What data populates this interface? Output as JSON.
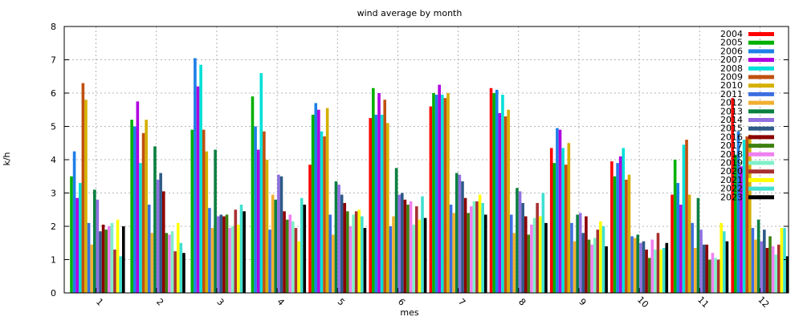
{
  "chart_data": {
    "type": "bar",
    "title": "wind average by month",
    "xlabel": "mes",
    "ylabel": "k/h",
    "ylim": [
      0,
      8
    ],
    "yticks": [
      0,
      1,
      2,
      3,
      4,
      5,
      6,
      7,
      8
    ],
    "grid": true,
    "legend_position": "top-right",
    "categories": [
      "1",
      "2",
      "3",
      "4",
      "5",
      "6",
      "7",
      "8",
      "9",
      "10",
      "11",
      "12"
    ],
    "series": [
      {
        "name": "2004",
        "color": "#ff0000",
        "values": [
          null,
          null,
          null,
          null,
          3.85,
          5.25,
          5.6,
          6.15,
          4.35,
          3.95,
          2.95,
          5.85
        ]
      },
      {
        "name": "2005",
        "color": "#00b000",
        "values": [
          3.5,
          5.2,
          4.9,
          5.9,
          5.35,
          6.15,
          6.0,
          6.0,
          3.9,
          3.5,
          4.0,
          4.15
        ]
      },
      {
        "name": "2006",
        "color": "#1e7fe8",
        "values": [
          4.25,
          5.0,
          7.05,
          5.0,
          5.7,
          5.35,
          5.95,
          6.1,
          4.95,
          3.9,
          3.3,
          4.85
        ]
      },
      {
        "name": "2007",
        "color": "#b000e0",
        "values": [
          2.85,
          5.75,
          6.2,
          4.3,
          5.5,
          6.0,
          6.25,
          5.4,
          4.9,
          4.1,
          2.65,
          3.8
        ]
      },
      {
        "name": "2008",
        "color": "#00e0d8",
        "values": [
          3.3,
          3.9,
          6.85,
          6.6,
          4.85,
          5.35,
          5.95,
          5.95,
          4.35,
          4.35,
          4.45,
          4.6
        ]
      },
      {
        "name": "2009",
        "color": "#c05010",
        "values": [
          6.3,
          4.8,
          4.9,
          4.85,
          4.7,
          5.8,
          5.85,
          5.3,
          3.85,
          3.4,
          4.6,
          4.7
        ]
      },
      {
        "name": "2010",
        "color": "#d4b000",
        "values": [
          5.8,
          5.2,
          4.25,
          4.0,
          5.55,
          5.1,
          6.0,
          5.5,
          4.5,
          3.55,
          2.95,
          4.75
        ]
      },
      {
        "name": "2011",
        "color": "#3d6fe0",
        "values": [
          2.1,
          2.65,
          2.55,
          1.9,
          2.35,
          2.0,
          2.65,
          2.35,
          2.1,
          1.7,
          2.1,
          1.95
        ]
      },
      {
        "name": "2012",
        "color": "#f0b030",
        "values": [
          1.45,
          1.8,
          1.95,
          2.95,
          1.75,
          2.3,
          2.4,
          1.8,
          1.55,
          1.65,
          1.35,
          1.6
        ]
      },
      {
        "name": "2013",
        "color": "#0a8040",
        "values": [
          3.1,
          4.4,
          4.3,
          2.8,
          3.35,
          3.75,
          3.6,
          3.15,
          2.35,
          1.75,
          2.85,
          2.2
        ]
      },
      {
        "name": "2014",
        "color": "#9070e0",
        "values": [
          2.8,
          3.4,
          2.3,
          3.55,
          3.25,
          2.95,
          3.55,
          3.05,
          2.4,
          1.5,
          1.9,
          1.55
        ]
      },
      {
        "name": "2015",
        "color": "#2e5a88",
        "values": [
          1.85,
          3.6,
          2.35,
          3.5,
          2.95,
          3.0,
          3.35,
          2.7,
          1.8,
          1.55,
          1.45,
          1.9
        ]
      },
      {
        "name": "2016",
        "color": "#8c0000",
        "values": [
          2.05,
          3.05,
          2.3,
          2.45,
          2.7,
          2.8,
          2.85,
          2.3,
          2.3,
          1.3,
          1.45,
          1.35
        ]
      },
      {
        "name": "2017",
        "color": "#3c8010",
        "values": [
          1.9,
          1.8,
          2.35,
          2.2,
          2.45,
          2.65,
          2.4,
          1.75,
          1.6,
          1.05,
          1.0,
          1.7
        ]
      },
      {
        "name": "2018",
        "color": "#f080f0",
        "values": [
          2.0,
          1.75,
          1.95,
          2.35,
          2.0,
          2.75,
          2.6,
          2.05,
          1.45,
          1.6,
          1.2,
          1.4
        ]
      },
      {
        "name": "2019",
        "color": "#80f0c8",
        "values": [
          2.1,
          1.85,
          2.0,
          2.15,
          2.35,
          2.05,
          2.75,
          2.25,
          1.65,
          1.3,
          1.05,
          1.15
        ]
      },
      {
        "name": "2020",
        "color": "#a83030",
        "values": [
          1.3,
          1.25,
          2.5,
          1.95,
          2.45,
          2.6,
          2.75,
          2.7,
          1.9,
          1.8,
          1.0,
          1.45
        ]
      },
      {
        "name": "2021",
        "color": "#ffff00",
        "values": [
          2.2,
          2.1,
          2.05,
          1.55,
          2.5,
          2.2,
          2.95,
          2.3,
          2.15,
          1.3,
          2.1,
          1.95
        ]
      },
      {
        "name": "2022",
        "color": "#40e0d0",
        "values": [
          1.1,
          1.5,
          2.65,
          2.85,
          2.3,
          2.9,
          2.7,
          3.0,
          2.0,
          1.35,
          1.85,
          1.95
        ]
      },
      {
        "name": "2023",
        "color": "#000000",
        "values": [
          2.0,
          1.2,
          2.45,
          2.65,
          1.95,
          2.25,
          2.35,
          2.1,
          1.4,
          1.5,
          1.55,
          1.1
        ]
      }
    ]
  }
}
